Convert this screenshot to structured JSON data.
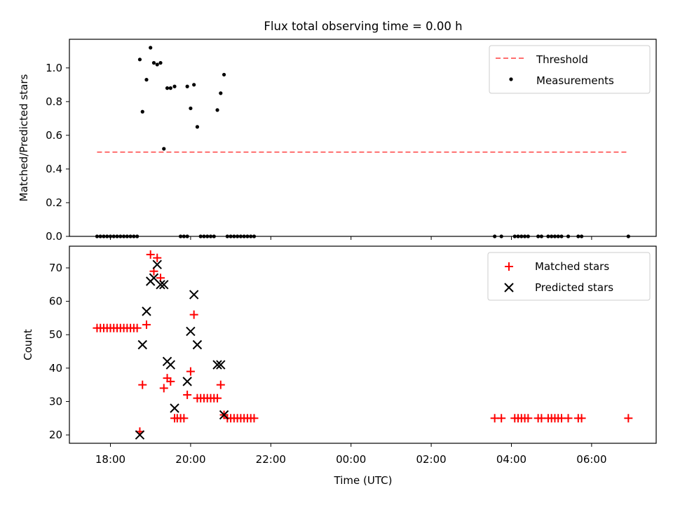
{
  "figure": {
    "title": "Flux total observing time = 0.00 h"
  },
  "chart_data": [
    {
      "type": "scatter",
      "ylabel": "Matched/Predicted stars",
      "ylim": [
        0,
        1.17
      ],
      "yticks": [
        0.0,
        0.2,
        0.4,
        0.6,
        0.8,
        1.0
      ],
      "ytick_labels": [
        "0.0",
        "0.2",
        "0.4",
        "0.6",
        "0.8",
        "1.0"
      ],
      "legend_position": "top-right",
      "legend": [
        {
          "label": "Threshold",
          "style": "dashed-line",
          "color": "#ff6f6f"
        },
        {
          "label": "Measurements",
          "style": "dot",
          "color": "#000000"
        }
      ],
      "threshold": {
        "value": 0.5,
        "x_start": "17:40",
        "x_end": "06:55"
      },
      "series": [
        {
          "name": "Measurements",
          "color": "#000000",
          "marker": "dot",
          "points": [
            [
              "17:40",
              0
            ],
            [
              "17:45",
              0
            ],
            [
              "17:50",
              0
            ],
            [
              "17:55",
              0
            ],
            [
              "18:00",
              0
            ],
            [
              "18:05",
              0
            ],
            [
              "18:10",
              0
            ],
            [
              "18:15",
              0
            ],
            [
              "18:20",
              0
            ],
            [
              "18:25",
              0
            ],
            [
              "18:30",
              0
            ],
            [
              "18:35",
              0
            ],
            [
              "18:40",
              0
            ],
            [
              "18:44",
              1.05
            ],
            [
              "18:48",
              0.74
            ],
            [
              "18:54",
              0.93
            ],
            [
              "19:00",
              1.12
            ],
            [
              "19:05",
              1.03
            ],
            [
              "19:10",
              1.02
            ],
            [
              "19:15",
              1.03
            ],
            [
              "19:20",
              0.52
            ],
            [
              "19:25",
              0.88
            ],
            [
              "19:30",
              0.88
            ],
            [
              "19:36",
              0.89
            ],
            [
              "19:45",
              0
            ],
            [
              "19:50",
              0
            ],
            [
              "19:55",
              0
            ],
            [
              "19:55",
              0.89
            ],
            [
              "20:00",
              0.76
            ],
            [
              "20:05",
              0.9
            ],
            [
              "20:10",
              0.65
            ],
            [
              "20:15",
              0
            ],
            [
              "20:20",
              0
            ],
            [
              "20:25",
              0
            ],
            [
              "20:30",
              0
            ],
            [
              "20:35",
              0
            ],
            [
              "20:40",
              0.75
            ],
            [
              "20:45",
              0.85
            ],
            [
              "20:50",
              0.96
            ],
            [
              "20:55",
              0
            ],
            [
              "21:00",
              0
            ],
            [
              "21:05",
              0
            ],
            [
              "21:10",
              0
            ],
            [
              "21:15",
              0
            ],
            [
              "21:20",
              0
            ],
            [
              "21:25",
              0
            ],
            [
              "21:30",
              0
            ],
            [
              "21:35",
              0
            ],
            [
              "03:35",
              0
            ],
            [
              "03:45",
              0
            ],
            [
              "04:05",
              0
            ],
            [
              "04:10",
              0
            ],
            [
              "04:15",
              0
            ],
            [
              "04:20",
              0
            ],
            [
              "04:25",
              0
            ],
            [
              "04:40",
              0
            ],
            [
              "04:45",
              0
            ],
            [
              "04:55",
              0
            ],
            [
              "05:00",
              0
            ],
            [
              "05:05",
              0
            ],
            [
              "05:10",
              0
            ],
            [
              "05:15",
              0
            ],
            [
              "05:25",
              0
            ],
            [
              "05:40",
              0
            ],
            [
              "05:45",
              0
            ],
            [
              "06:55",
              0
            ]
          ]
        }
      ]
    },
    {
      "type": "scatter",
      "xlabel": "Time (UTC)",
      "ylabel": "Count",
      "ylim": [
        17.5,
        76.5
      ],
      "yticks": [
        20,
        30,
        40,
        50,
        60,
        70
      ],
      "ytick_labels": [
        "20",
        "30",
        "40",
        "50",
        "60",
        "70"
      ],
      "xticks": [
        "18:00",
        "20:00",
        "22:00",
        "00:00",
        "02:00",
        "04:00",
        "06:00"
      ],
      "xlim": [
        "16:58",
        "07:35"
      ],
      "legend_position": "top-right",
      "legend": [
        {
          "label": "Matched stars",
          "style": "plus",
          "color": "#ff0000"
        },
        {
          "label": "Predicted stars",
          "style": "x",
          "color": "#000000"
        }
      ],
      "series": [
        {
          "name": "Matched stars",
          "color": "#ff0000",
          "marker": "plus",
          "points": [
            [
              "17:40",
              52
            ],
            [
              "17:45",
              52
            ],
            [
              "17:50",
              52
            ],
            [
              "17:55",
              52
            ],
            [
              "18:00",
              52
            ],
            [
              "18:05",
              52
            ],
            [
              "18:10",
              52
            ],
            [
              "18:15",
              52
            ],
            [
              "18:20",
              52
            ],
            [
              "18:25",
              52
            ],
            [
              "18:30",
              52
            ],
            [
              "18:35",
              52
            ],
            [
              "18:40",
              52
            ],
            [
              "18:44",
              21
            ],
            [
              "18:48",
              35
            ],
            [
              "18:54",
              53
            ],
            [
              "19:00",
              74
            ],
            [
              "19:05",
              69
            ],
            [
              "19:10",
              73
            ],
            [
              "19:15",
              67
            ],
            [
              "19:20",
              34
            ],
            [
              "19:25",
              37
            ],
            [
              "19:30",
              36
            ],
            [
              "19:36",
              25
            ],
            [
              "19:40",
              25
            ],
            [
              "19:45",
              25
            ],
            [
              "19:50",
              25
            ],
            [
              "19:55",
              32
            ],
            [
              "20:00",
              39
            ],
            [
              "20:05",
              56
            ],
            [
              "20:10",
              31
            ],
            [
              "20:15",
              31
            ],
            [
              "20:20",
              31
            ],
            [
              "20:25",
              31
            ],
            [
              "20:30",
              31
            ],
            [
              "20:35",
              31
            ],
            [
              "20:40",
              31
            ],
            [
              "20:45",
              35
            ],
            [
              "20:50",
              26
            ],
            [
              "20:55",
              25
            ],
            [
              "21:00",
              25
            ],
            [
              "21:05",
              25
            ],
            [
              "21:10",
              25
            ],
            [
              "21:15",
              25
            ],
            [
              "21:20",
              25
            ],
            [
              "21:25",
              25
            ],
            [
              "21:30",
              25
            ],
            [
              "21:35",
              25
            ],
            [
              "03:35",
              25
            ],
            [
              "03:45",
              25
            ],
            [
              "04:05",
              25
            ],
            [
              "04:10",
              25
            ],
            [
              "04:15",
              25
            ],
            [
              "04:20",
              25
            ],
            [
              "04:25",
              25
            ],
            [
              "04:40",
              25
            ],
            [
              "04:45",
              25
            ],
            [
              "04:55",
              25
            ],
            [
              "05:00",
              25
            ],
            [
              "05:05",
              25
            ],
            [
              "05:10",
              25
            ],
            [
              "05:15",
              25
            ],
            [
              "05:25",
              25
            ],
            [
              "05:40",
              25
            ],
            [
              "05:45",
              25
            ],
            [
              "06:55",
              25
            ]
          ]
        },
        {
          "name": "Predicted stars",
          "color": "#000000",
          "marker": "x",
          "points": [
            [
              "18:44",
              20
            ],
            [
              "18:48",
              47
            ],
            [
              "18:54",
              57
            ],
            [
              "19:00",
              66
            ],
            [
              "19:05",
              67
            ],
            [
              "19:10",
              71
            ],
            [
              "19:15",
              65
            ],
            [
              "19:20",
              65
            ],
            [
              "19:25",
              42
            ],
            [
              "19:30",
              41
            ],
            [
              "19:36",
              28
            ],
            [
              "19:55",
              36
            ],
            [
              "20:00",
              51
            ],
            [
              "20:05",
              62
            ],
            [
              "20:10",
              47
            ],
            [
              "20:40",
              41
            ],
            [
              "20:45",
              41
            ],
            [
              "20:50",
              26
            ]
          ]
        }
      ]
    }
  ]
}
